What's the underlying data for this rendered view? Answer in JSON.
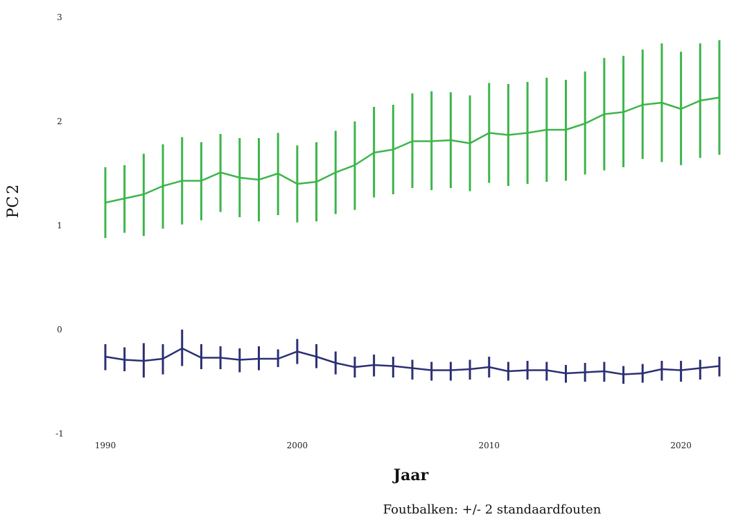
{
  "chart_data": {
    "type": "line",
    "xlabel": "Jaar",
    "ylabel": "PC",
    "ylabel_subscript": "2",
    "caption": "Foutbalken: +/- 2 standaardfouten",
    "xlim": [
      1990,
      2022
    ],
    "ylim": [
      -1,
      3
    ],
    "xticks": [
      1990,
      2000,
      2010,
      2020
    ],
    "yticks": [
      -1,
      0,
      1,
      2,
      3
    ],
    "grid": false,
    "x": [
      1990,
      1991,
      1992,
      1993,
      1994,
      1995,
      1996,
      1997,
      1998,
      1999,
      2000,
      2001,
      2002,
      2003,
      2004,
      2005,
      2006,
      2007,
      2008,
      2009,
      2010,
      2011,
      2012,
      2013,
      2014,
      2015,
      2016,
      2017,
      2018,
      2019,
      2020,
      2021,
      2022
    ],
    "series": [
      {
        "color": "#3cb54a",
        "values": [
          1.22,
          1.26,
          1.3,
          1.38,
          1.43,
          1.43,
          1.51,
          1.46,
          1.44,
          1.5,
          1.4,
          1.42,
          1.51,
          1.58,
          1.7,
          1.73,
          1.81,
          1.81,
          1.82,
          1.79,
          1.89,
          1.87,
          1.89,
          1.92,
          1.92,
          1.98,
          2.07,
          2.09,
          2.16,
          2.18,
          2.12,
          2.2,
          2.23
        ],
        "lower": [
          0.88,
          0.93,
          0.9,
          0.97,
          1.01,
          1.05,
          1.13,
          1.08,
          1.04,
          1.1,
          1.03,
          1.04,
          1.11,
          1.15,
          1.27,
          1.3,
          1.36,
          1.34,
          1.36,
          1.33,
          1.41,
          1.38,
          1.4,
          1.42,
          1.43,
          1.49,
          1.53,
          1.56,
          1.64,
          1.61,
          1.58,
          1.65,
          1.68
        ],
        "upper": [
          1.56,
          1.58,
          1.69,
          1.78,
          1.85,
          1.8,
          1.88,
          1.84,
          1.84,
          1.89,
          1.77,
          1.8,
          1.91,
          2.0,
          2.14,
          2.16,
          2.27,
          2.29,
          2.28,
          2.25,
          2.37,
          2.36,
          2.38,
          2.42,
          2.4,
          2.48,
          2.61,
          2.63,
          2.69,
          2.75,
          2.67,
          2.75,
          2.78
        ]
      },
      {
        "color": "#2b2f74",
        "values": [
          -0.26,
          -0.29,
          -0.3,
          -0.28,
          -0.18,
          -0.27,
          -0.27,
          -0.29,
          -0.28,
          -0.28,
          -0.21,
          -0.26,
          -0.32,
          -0.36,
          -0.34,
          -0.35,
          -0.37,
          -0.39,
          -0.39,
          -0.38,
          -0.36,
          -0.4,
          -0.39,
          -0.39,
          -0.42,
          -0.41,
          -0.4,
          -0.43,
          -0.42,
          -0.38,
          -0.39,
          -0.37,
          -0.35
        ],
        "lower": [
          -0.39,
          -0.4,
          -0.46,
          -0.43,
          -0.35,
          -0.38,
          -0.38,
          -0.41,
          -0.39,
          -0.36,
          -0.33,
          -0.37,
          -0.43,
          -0.46,
          -0.45,
          -0.46,
          -0.48,
          -0.49,
          -0.49,
          -0.48,
          -0.46,
          -0.49,
          -0.48,
          -0.49,
          -0.51,
          -0.5,
          -0.5,
          -0.52,
          -0.51,
          -0.49,
          -0.5,
          -0.48,
          -0.45
        ],
        "upper": [
          -0.14,
          -0.17,
          -0.13,
          -0.14,
          0.0,
          -0.14,
          -0.16,
          -0.18,
          -0.16,
          -0.19,
          -0.09,
          -0.14,
          -0.21,
          -0.26,
          -0.24,
          -0.26,
          -0.29,
          -0.31,
          -0.31,
          -0.29,
          -0.26,
          -0.31,
          -0.3,
          -0.31,
          -0.34,
          -0.32,
          -0.31,
          -0.35,
          -0.33,
          -0.3,
          -0.3,
          -0.29,
          -0.26
        ]
      }
    ]
  }
}
